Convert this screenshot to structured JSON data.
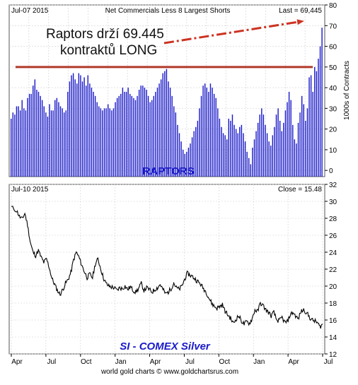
{
  "chart_data": [
    {
      "type": "bar",
      "date_label": "Jul-07  2015",
      "title": "Net Commercials Less 8 Largest Shorts",
      "last_label": "Last = 69,445",
      "ylabel": "1000s of Contracts",
      "ylim": [
        -3,
        80
      ],
      "yticks": [
        0,
        10,
        20,
        30,
        40,
        50,
        60,
        70,
        80
      ],
      "grid": true,
      "annotation": {
        "line1": "Raptors drží 69.445",
        "line2": "kontraktů LONG"
      },
      "watermark": "RAPTORS",
      "reference_line": {
        "value": 50,
        "color": "#b23a2a"
      },
      "bar_color": "#1a1ac8",
      "arrow_color": "#cc3322",
      "values": [
        25,
        28,
        27,
        31,
        31,
        29,
        34,
        30,
        29,
        35,
        37,
        37,
        41,
        44,
        39,
        38,
        36,
        34,
        31,
        28,
        26,
        32,
        29,
        29,
        34,
        35,
        33,
        31,
        30,
        28,
        29,
        38,
        43,
        46,
        47,
        44,
        42,
        47,
        46,
        43,
        45,
        41,
        46,
        42,
        40,
        38,
        36,
        33,
        31,
        30,
        29,
        30,
        30,
        32,
        30,
        29,
        30,
        33,
        35,
        36,
        37,
        40,
        38,
        38,
        40,
        37,
        36,
        35,
        34,
        36,
        39,
        41,
        41,
        40,
        39,
        36,
        33,
        34,
        36,
        38,
        40,
        42,
        44,
        47,
        48,
        49,
        43,
        40,
        36,
        31,
        28,
        22,
        18,
        14,
        10,
        8,
        9,
        11,
        13,
        16,
        19,
        21,
        24,
        30,
        36,
        41,
        42,
        40,
        38,
        42,
        40,
        37,
        35,
        30,
        25,
        21,
        18,
        17,
        15,
        25,
        24,
        27,
        22,
        20,
        18,
        21,
        22,
        18,
        14,
        9,
        6,
        3,
        11,
        15,
        19,
        23,
        27,
        30,
        27,
        22,
        18,
        14,
        12,
        17,
        21,
        27,
        30,
        24,
        19,
        23,
        29,
        33,
        38,
        34,
        22,
        15,
        13,
        23,
        28,
        36,
        32,
        24,
        30,
        45,
        46,
        38,
        50,
        48,
        54,
        60,
        69
      ],
      "x_month_count": 16
    },
    {
      "type": "line",
      "date_label": "Jul-10  2015",
      "last_label": "Close = 15.48",
      "watermark": "SI  -  COMEX Silver",
      "ylim": [
        12,
        32
      ],
      "yticks": [
        12,
        14,
        16,
        18,
        20,
        22,
        24,
        26,
        28,
        30,
        32
      ],
      "x": [
        "Apr",
        "Jul",
        "Oct",
        "Jan",
        "Apr",
        "Jul",
        "Oct",
        "Jan",
        "Apr",
        "Jul"
      ],
      "grid": true,
      "line_color": "#000000",
      "anchors": [
        [
          0,
          29.3
        ],
        [
          8,
          28.9
        ],
        [
          12,
          28.2
        ],
        [
          16,
          27.9
        ],
        [
          20,
          28.6
        ],
        [
          24,
          27.2
        ],
        [
          28,
          25.2
        ],
        [
          32,
          24.0
        ],
        [
          36,
          23.6
        ],
        [
          40,
          24.2
        ],
        [
          44,
          23.4
        ],
        [
          48,
          22.8
        ],
        [
          52,
          23.2
        ],
        [
          56,
          22.2
        ],
        [
          60,
          20.9
        ],
        [
          64,
          20.2
        ],
        [
          68,
          19.5
        ],
        [
          72,
          19.0
        ],
        [
          76,
          19.6
        ],
        [
          80,
          20.3
        ],
        [
          84,
          20.8
        ],
        [
          88,
          21.6
        ],
        [
          92,
          23.1
        ],
        [
          96,
          24.0
        ],
        [
          100,
          23.4
        ],
        [
          104,
          22.5
        ],
        [
          108,
          21.7
        ],
        [
          112,
          21.0
        ],
        [
          116,
          21.4
        ],
        [
          120,
          21.0
        ],
        [
          124,
          22.6
        ],
        [
          128,
          23.2
        ],
        [
          132,
          22.1
        ],
        [
          136,
          21.0
        ],
        [
          140,
          20.3
        ],
        [
          144,
          20.0
        ],
        [
          148,
          19.9
        ],
        [
          152,
          19.8
        ],
        [
          156,
          19.5
        ],
        [
          160,
          19.8
        ],
        [
          164,
          19.7
        ],
        [
          168,
          20.0
        ],
        [
          172,
          19.6
        ],
        [
          176,
          19.9
        ],
        [
          180,
          19.5
        ],
        [
          184,
          19.3
        ],
        [
          188,
          19.7
        ],
        [
          192,
          20.3
        ],
        [
          196,
          19.5
        ],
        [
          200,
          19.8
        ],
        [
          204,
          19.6
        ],
        [
          208,
          19.3
        ],
        [
          212,
          19.6
        ],
        [
          216,
          19.8
        ],
        [
          220,
          20.2
        ],
        [
          224,
          19.6
        ],
        [
          228,
          19.1
        ],
        [
          232,
          19.3
        ],
        [
          236,
          19.7
        ],
        [
          240,
          20.4
        ],
        [
          244,
          19.8
        ],
        [
          248,
          19.6
        ],
        [
          252,
          20.0
        ],
        [
          256,
          20.8
        ],
        [
          260,
          21.5
        ],
        [
          264,
          21.3
        ],
        [
          268,
          21.1
        ],
        [
          272,
          20.8
        ],
        [
          276,
          20.5
        ],
        [
          280,
          20.2
        ],
        [
          284,
          19.7
        ],
        [
          288,
          19.3
        ],
        [
          292,
          18.6
        ],
        [
          296,
          18.0
        ],
        [
          300,
          17.6
        ],
        [
          304,
          17.4
        ],
        [
          308,
          17.6
        ],
        [
          312,
          17.8
        ],
        [
          316,
          17.0
        ],
        [
          320,
          16.6
        ],
        [
          324,
          16.2
        ],
        [
          328,
          15.6
        ],
        [
          332,
          16.1
        ],
        [
          336,
          16.5
        ],
        [
          340,
          15.9
        ],
        [
          344,
          15.5
        ],
        [
          348,
          15.8
        ],
        [
          352,
          15.6
        ],
        [
          356,
          16.2
        ],
        [
          360,
          17.2
        ],
        [
          364,
          17.0
        ],
        [
          368,
          18.0
        ],
        [
          372,
          17.7
        ],
        [
          376,
          17.2
        ],
        [
          380,
          16.9
        ],
        [
          384,
          16.5
        ],
        [
          388,
          16.9
        ],
        [
          392,
          16.0
        ],
        [
          396,
          15.9
        ],
        [
          400,
          16.3
        ],
        [
          404,
          15.7
        ],
        [
          408,
          15.8
        ],
        [
          412,
          16.6
        ],
        [
          416,
          16.9
        ],
        [
          420,
          16.5
        ],
        [
          424,
          16.1
        ],
        [
          428,
          17.0
        ],
        [
          432,
          17.2
        ],
        [
          436,
          16.9
        ],
        [
          440,
          16.4
        ],
        [
          444,
          16.0
        ],
        [
          448,
          15.9
        ],
        [
          452,
          15.7
        ],
        [
          456,
          15.2
        ],
        [
          460,
          15.48
        ]
      ]
    }
  ],
  "footer": {
    "credit": "world gold charts © www.goldchartsrus.com"
  }
}
